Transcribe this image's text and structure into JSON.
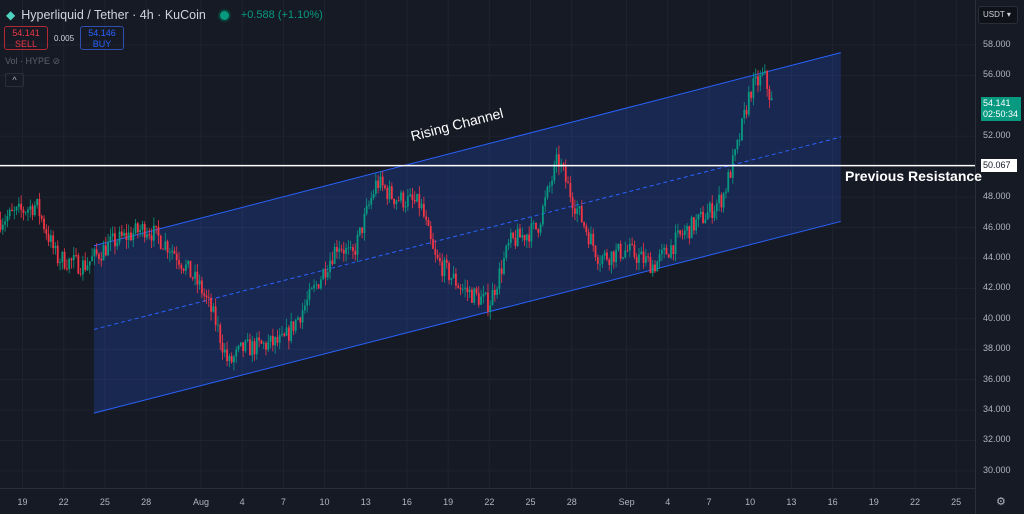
{
  "header": {
    "title": "Hyperliquid / Tether · 4h · KuCoin",
    "change": "+0.588 (+1.10%)",
    "status_color": "#089981"
  },
  "trade": {
    "sell_price": "54.141",
    "sell_label": "SELL",
    "spread": "0.005",
    "buy_price": "54.146",
    "buy_label": "BUY"
  },
  "volume_label": "Vol · HYPE",
  "collapse_icon": "chevron-up-icon",
  "currency": "USDT",
  "current_price": {
    "value": "54.141",
    "countdown": "02:50:34"
  },
  "resistance_price": "50.067",
  "annotations": {
    "channel": "Rising Channel",
    "resistance": "Previous Resistance"
  },
  "chart_data": {
    "type": "candlestick",
    "interval": "4h",
    "ylim": [
      29,
      59
    ],
    "y_ticks": [
      "58.000",
      "56.000",
      "52.000",
      "48.000",
      "46.000",
      "44.000",
      "42.000",
      "40.000",
      "38.000",
      "36.000",
      "34.000",
      "32.000",
      "30.000"
    ],
    "y_tick_values": [
      58,
      56,
      52,
      48,
      46,
      44,
      42,
      40,
      38,
      36,
      34,
      32,
      30
    ],
    "x_ticks": [
      {
        "label": "19",
        "day": -13
      },
      {
        "label": "22",
        "day": -10
      },
      {
        "label": "25",
        "day": -7
      },
      {
        "label": "28",
        "day": -4
      },
      {
        "label": "Aug",
        "day": 0
      },
      {
        "label": "4",
        "day": 3
      },
      {
        "label": "7",
        "day": 6
      },
      {
        "label": "10",
        "day": 9
      },
      {
        "label": "13",
        "day": 12
      },
      {
        "label": "16",
        "day": 15
      },
      {
        "label": "19",
        "day": 18
      },
      {
        "label": "22",
        "day": 21
      },
      {
        "label": "25",
        "day": 24
      },
      {
        "label": "28",
        "day": 27
      },
      {
        "label": "Sep",
        "day": 31
      },
      {
        "label": "4",
        "day": 34
      },
      {
        "label": "7",
        "day": 37
      },
      {
        "label": "10",
        "day": 40
      },
      {
        "label": "13",
        "day": 43
      },
      {
        "label": "16",
        "day": 46
      },
      {
        "label": "19",
        "day": 49
      },
      {
        "label": "22",
        "day": 52
      },
      {
        "label": "25",
        "day": 55
      }
    ],
    "price_path": [
      [
        -14.6,
        46.5
      ],
      [
        -12,
        47.5
      ],
      [
        -10.5,
        44
      ],
      [
        -8.5,
        43.5
      ],
      [
        -6.5,
        45
      ],
      [
        -4,
        46
      ],
      [
        -2,
        44.5
      ],
      [
        0,
        42
      ],
      [
        1,
        40
      ],
      [
        2,
        37
      ],
      [
        3,
        38
      ],
      [
        6,
        38.5
      ],
      [
        8,
        41.5
      ],
      [
        10,
        45
      ],
      [
        11,
        44
      ],
      [
        12.8,
        49
      ],
      [
        14,
        48
      ],
      [
        16,
        47.5
      ],
      [
        17,
        44
      ],
      [
        19,
        42
      ],
      [
        21,
        41
      ],
      [
        22.5,
        45
      ],
      [
        24.5,
        46
      ],
      [
        26,
        50.5
      ],
      [
        27,
        48
      ],
      [
        29,
        44
      ],
      [
        31,
        44.5
      ],
      [
        33,
        43.5
      ],
      [
        35,
        45.5
      ],
      [
        37,
        47
      ],
      [
        38,
        48
      ],
      [
        39,
        51
      ],
      [
        40,
        55
      ],
      [
        41,
        56
      ],
      [
        41.6,
        54.14
      ]
    ],
    "channel": {
      "upper": [
        [
          -7.8,
          44.8
        ],
        [
          46.6,
          57.5
        ]
      ],
      "lower": [
        [
          -7.8,
          33.8
        ],
        [
          46.6,
          46.4
        ]
      ],
      "mid_dashed": true
    },
    "horizontal_line": 50.067,
    "up_color": "#089981",
    "down_color": "#f23645",
    "channel_color": "#2962ff"
  }
}
